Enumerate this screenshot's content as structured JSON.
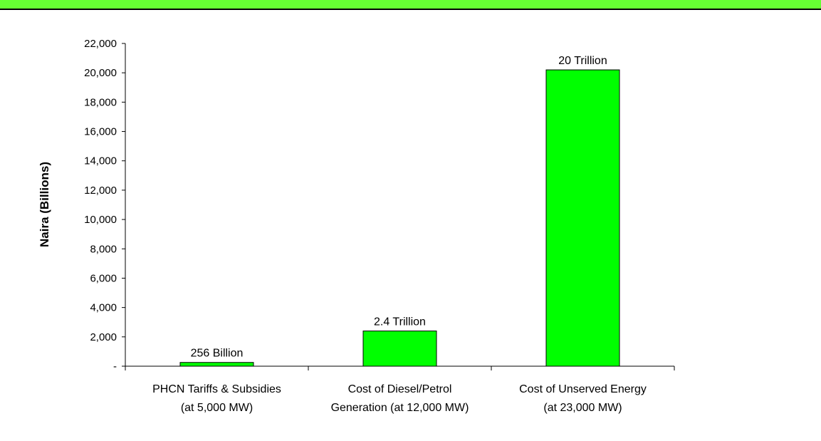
{
  "chart_data": {
    "type": "bar",
    "title": "",
    "xlabel": "",
    "ylabel": "Naira (Billions)",
    "ylim": [
      0,
      22000
    ],
    "yticks": [
      {
        "value": 0,
        "label": "-"
      },
      {
        "value": 2000,
        "label": "2,000"
      },
      {
        "value": 4000,
        "label": "4,000"
      },
      {
        "value": 6000,
        "label": "6,000"
      },
      {
        "value": 8000,
        "label": "8,000"
      },
      {
        "value": 10000,
        "label": "10,000"
      },
      {
        "value": 12000,
        "label": "12,000"
      },
      {
        "value": 14000,
        "label": "14,000"
      },
      {
        "value": 16000,
        "label": "16,000"
      },
      {
        "value": 18000,
        "label": "18,000"
      },
      {
        "value": 20000,
        "label": "20,000"
      },
      {
        "value": 22000,
        "label": "22,000"
      }
    ],
    "categories": [
      [
        "PHCN Tariffs & Subsidies",
        "(at 5,000 MW)"
      ],
      [
        "Cost of Diesel/Petrol",
        "Generation (at 12,000 MW)"
      ],
      [
        "Cost of Unserved Energy",
        "(at 23,000 MW)"
      ]
    ],
    "values": [
      256,
      2400,
      20200
    ],
    "data_labels": [
      "256 Billion",
      "2.4 Trillion",
      "20 Trillion"
    ],
    "bar_color": "#00ff00",
    "grid": false,
    "legend": "none"
  },
  "colors": {
    "top_band": "#66ff33",
    "bar_fill": "#00ff00",
    "bar_stroke": "#000000"
  }
}
